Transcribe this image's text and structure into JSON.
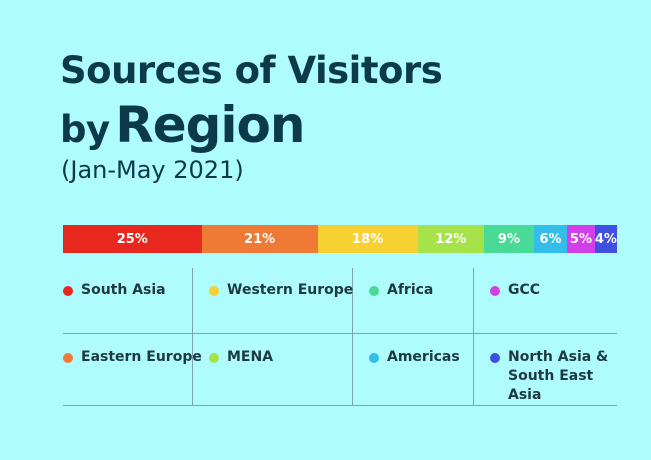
{
  "chart_data": {
    "type": "bar",
    "stacked": true,
    "orientation": "horizontal",
    "title_line1": "Sources of Visitors",
    "title_line2_small": "by",
    "title_line2_big": "Region",
    "subtitle": "(Jan-May 2021)",
    "unit": "%",
    "segments": [
      {
        "name": "South Asia",
        "value": 25,
        "label": "25%",
        "color": "#e8281f"
      },
      {
        "name": "Eastern Europe",
        "value": 21,
        "label": "21%",
        "color": "#ef7a36"
      },
      {
        "name": "Western Europe",
        "value": 18,
        "label": "18%",
        "color": "#f7d132"
      },
      {
        "name": "MENA",
        "value": 12,
        "label": "12%",
        "color": "#a6e34a"
      },
      {
        "name": "Africa",
        "value": 9,
        "label": "9%",
        "color": "#48da96"
      },
      {
        "name": "Americas",
        "value": 6,
        "label": "6%",
        "color": "#35bde9"
      },
      {
        "name": "GCC",
        "value": 5,
        "label": "5%",
        "color": "#d23ee8"
      },
      {
        "name": "North Asia &\nSouth East Asia",
        "value": 4,
        "label": "4%",
        "color": "#3f4fe0"
      }
    ],
    "legend_order": [
      "South Asia",
      "Western Europe",
      "Africa",
      "GCC",
      "Eastern Europe",
      "MENA",
      "Americas",
      "North Asia &\nSouth East Asia"
    ]
  }
}
